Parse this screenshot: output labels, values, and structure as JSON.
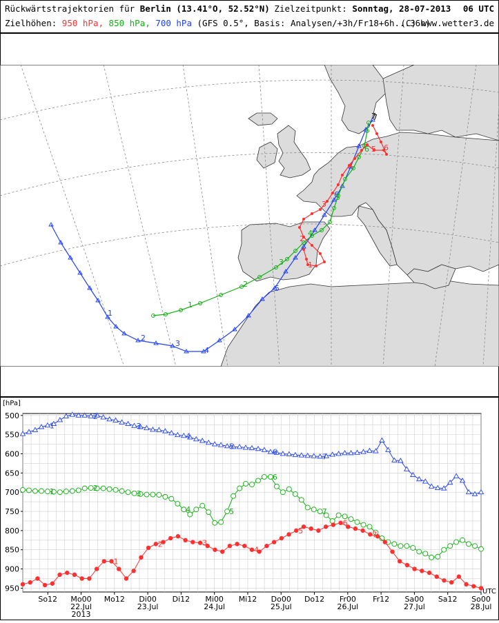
{
  "header": {
    "title_prefix": "Rückwärtstrajektorien für",
    "city": "Berlin",
    "coords": "(13.41°O, 52.52°N)",
    "target_label": "Zielzeitpunkt:",
    "target_time": "Sonntag, 28-07-2013",
    "target_hour": "06 UTC",
    "heights_label": "Zielhöhen:",
    "h950": "950 hPa,",
    "h850": "850 hPa,",
    "h700": "700 hPa",
    "model_info": "(GFS 0.5°, Basis: Analysen/+3h/Fr18+6h...36h)",
    "credit": "(C) www.wetter3.de"
  },
  "colors": {
    "h950": "#ff3030",
    "h850": "#10b010",
    "h700": "#2040ff",
    "land": "#dcdcdc",
    "sea": "#ffffff"
  },
  "map": {
    "labels_950": [
      "1",
      "2",
      "3",
      "4",
      "5",
      "6",
      "7"
    ],
    "labels_850": [
      "1",
      "2",
      "3",
      "4",
      "5",
      "6"
    ],
    "labels_700": [
      "1",
      "2",
      "3",
      "4",
      "5",
      "6",
      "7"
    ]
  },
  "chart_data": {
    "type": "line",
    "ylabel": "[hPa]",
    "ylim": [
      960,
      495
    ],
    "yticks": [
      500,
      550,
      600,
      650,
      700,
      750,
      800,
      850,
      900,
      950
    ],
    "x_range_hours": [
      0,
      162
    ],
    "xtick_labels": [
      {
        "h": 9,
        "top": "So12",
        "bottom": ""
      },
      {
        "h": 21,
        "top": "Mo00",
        "bottom": "22.Jul",
        "bottom2": "2013"
      },
      {
        "h": 33,
        "top": "Mo12",
        "bottom": ""
      },
      {
        "h": 45,
        "top": "Di00",
        "bottom": "23.Jul"
      },
      {
        "h": 57,
        "top": "Di12",
        "bottom": ""
      },
      {
        "h": 69,
        "top": "Mi00",
        "bottom": "24.Jul"
      },
      {
        "h": 81,
        "top": "Mi12",
        "bottom": ""
      },
      {
        "h": 93,
        "top": "Do00",
        "bottom": "25.Jul"
      },
      {
        "h": 105,
        "top": "Do12",
        "bottom": ""
      },
      {
        "h": 117,
        "top": "Fr00",
        "bottom": "26.Jul"
      },
      {
        "h": 129,
        "top": "Fr12",
        "bottom": ""
      },
      {
        "h": 141,
        "top": "Sa00",
        "bottom": "27.Jul"
      },
      {
        "h": 153,
        "top": "Sa12",
        "bottom": ""
      },
      {
        "h": 165,
        "top": "So00",
        "bottom": "28.Jul"
      }
    ],
    "utc_label": "UTC",
    "series": [
      {
        "name": "700 hPa",
        "color": "#2040ff",
        "marker": "triangle",
        "step_hours": 3,
        "values": [
          548,
          543,
          538,
          530,
          526,
          522,
          512,
          502,
          498,
          500,
          500,
          502,
          500,
          505,
          510,
          513,
          518,
          522,
          527,
          530,
          533,
          537,
          538,
          541,
          546,
          551,
          553,
          557,
          562,
          566,
          571,
          575,
          577,
          580,
          582,
          582,
          584,
          585,
          587,
          590,
          595,
          597,
          600,
          601,
          603,
          604,
          605,
          606,
          607,
          606,
          602,
          600,
          598,
          598,
          597,
          595,
          592,
          593,
          565,
          590,
          617,
          618,
          640,
          655,
          666,
          672,
          685,
          689,
          690,
          675,
          658,
          670,
          700,
          705,
          700
        ],
        "labels": [
          {
            "i": 8,
            "t": "1"
          },
          {
            "i": 24,
            "t": "2"
          },
          {
            "i": 40,
            "t": "3"
          },
          {
            "i": 56,
            "t": "4"
          },
          {
            "i": 72,
            "t": "5"
          },
          {
            "i": 88,
            "t": "6"
          },
          {
            "i": 106,
            "t": "7"
          }
        ]
      },
      {
        "name": "850 hPa",
        "color": "#10b010",
        "marker": "circle",
        "step_hours": 3,
        "values": [
          694,
          695,
          697,
          697,
          698,
          699,
          700,
          698,
          697,
          695,
          690,
          689,
          690,
          690,
          692,
          694,
          697,
          700,
          703,
          705,
          706,
          706,
          707,
          712,
          717,
          730,
          745,
          758,
          745,
          735,
          752,
          780,
          778,
          750,
          710,
          690,
          678,
          680,
          670,
          660,
          660,
          685,
          700,
          692,
          705,
          720,
          740,
          745,
          750,
          760,
          775,
          760,
          763,
          770,
          778,
          785,
          790,
          805,
          820,
          830,
          835,
          840,
          840,
          845,
          855,
          860,
          870,
          868,
          850,
          840,
          830,
          825,
          835,
          840,
          848
        ],
        "labels": [
          {
            "i": 8,
            "t": "1"
          },
          {
            "i": 24,
            "t": "2"
          },
          {
            "i": 40,
            "t": "3"
          },
          {
            "i": 56,
            "t": "4"
          },
          {
            "i": 72,
            "t": "5"
          },
          {
            "i": 88,
            "t": "6"
          },
          {
            "i": 106,
            "t": "7"
          }
        ]
      },
      {
        "name": "950 hPa",
        "color": "#ff3030",
        "marker": "dot",
        "step_hours": 3,
        "values": [
          940,
          935,
          925,
          942,
          938,
          915,
          910,
          915,
          925,
          925,
          900,
          880,
          880,
          900,
          925,
          905,
          870,
          845,
          835,
          830,
          820,
          815,
          825,
          830,
          832,
          840,
          850,
          855,
          840,
          835,
          840,
          850,
          855,
          840,
          830,
          820,
          810,
          800,
          790,
          795,
          800,
          790,
          785,
          780,
          790,
          795,
          800,
          810,
          815,
          830,
          855,
          880,
          890,
          900,
          905,
          910,
          920,
          930,
          935,
          920,
          940,
          945,
          950
        ],
        "labels": [
          {
            "i": 32,
            "t": "1"
          },
          {
            "i": 48,
            "t": "2"
          },
          {
            "i": 64,
            "t": "3"
          },
          {
            "i": 80,
            "t": "4"
          },
          {
            "i": 96,
            "t": "5"
          },
          {
            "i": 112,
            "t": "6"
          },
          {
            "i": 124,
            "t": "7"
          }
        ]
      }
    ]
  }
}
